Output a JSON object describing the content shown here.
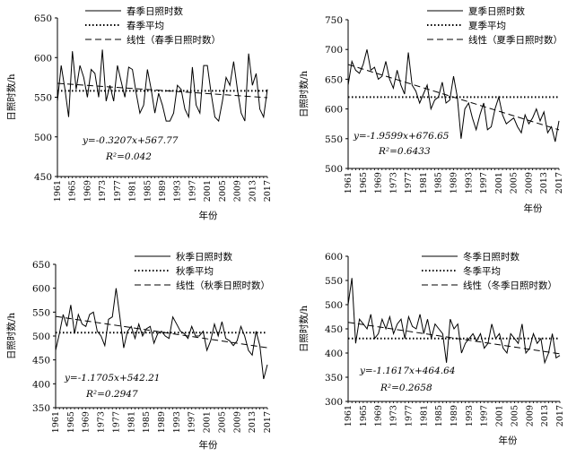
{
  "charts": [
    {
      "type": "line",
      "ylabel": "日照时数/h",
      "xlabel": "年份",
      "ylim": [
        450,
        650
      ],
      "yticks": [
        450,
        500,
        550,
        600,
        650
      ],
      "xticks": [
        "1961",
        "1965",
        "1969",
        "1973",
        "1977",
        "1981",
        "1985",
        "1989",
        "1993",
        "1997",
        "2001",
        "2005",
        "2009",
        "2013",
        "2017"
      ],
      "legend": [
        "春季日照时数",
        "春季平均",
        "线性（春季日照时数）"
      ],
      "legend_position": "top",
      "equation": "y=-0.3207x+567.77",
      "r2": "R²=0.042",
      "mean": 558,
      "trend": {
        "slope": -0.3207,
        "intercept": 567.77
      },
      "years": [
        1961,
        2017
      ],
      "values": [
        545,
        590,
        560,
        525,
        608,
        560,
        590,
        575,
        550,
        585,
        580,
        550,
        610,
        545,
        565,
        545,
        590,
        570,
        550,
        588,
        585,
        555,
        530,
        540,
        585,
        560,
        530,
        555,
        540,
        520,
        520,
        530,
        565,
        560,
        535,
        525,
        588,
        540,
        530,
        590,
        590,
        555,
        525,
        520,
        545,
        575,
        565,
        595,
        560,
        530,
        520,
        605,
        565,
        580,
        535,
        525,
        560
      ]
    },
    {
      "type": "line",
      "ylabel": "日照时数/h",
      "xlabel": "年份",
      "ylim": [
        500,
        750
      ],
      "yticks": [
        500,
        550,
        600,
        650,
        700,
        750
      ],
      "xticks": [
        "1961",
        "1965",
        "1969",
        "1973",
        "1977",
        "1981",
        "1985",
        "1989",
        "1993",
        "1997",
        "2001",
        "2005",
        "2009",
        "2013",
        "2017"
      ],
      "legend": [
        "夏季日照时数",
        "夏季平均",
        "线性（夏季日照时数）"
      ],
      "legend_position": "top",
      "equation": "y=-1.9599x+676.65",
      "r2": "R²=0.6433",
      "mean": 620,
      "trend": {
        "slope": -1.9599,
        "intercept": 676.65
      },
      "years": [
        1961,
        2017
      ],
      "values": [
        640,
        680,
        665,
        660,
        675,
        700,
        665,
        670,
        650,
        655,
        680,
        650,
        635,
        665,
        640,
        625,
        695,
        640,
        630,
        610,
        625,
        640,
        600,
        615,
        620,
        645,
        610,
        615,
        655,
        620,
        550,
        600,
        610,
        585,
        565,
        590,
        610,
        565,
        570,
        600,
        620,
        590,
        575,
        580,
        585,
        570,
        560,
        590,
        575,
        585,
        600,
        580,
        595,
        560,
        570,
        545,
        580
      ]
    },
    {
      "type": "line",
      "ylabel": "日照时数/h",
      "xlabel": "年份",
      "ylim": [
        350,
        650
      ],
      "yticks": [
        350,
        400,
        450,
        500,
        550,
        600,
        650
      ],
      "xticks": [
        "1961",
        "1965",
        "1969",
        "1973",
        "1977",
        "1981",
        "1985",
        "1989",
        "1993",
        "1997",
        "2001",
        "2005",
        "2009",
        "2013",
        "2017"
      ],
      "legend": [
        "秋季日照时数",
        "秋季平均",
        "线性（秋季日照时数）"
      ],
      "legend_position": "top",
      "equation": "y=-1.1705x+542.21",
      "r2": "R²=0.2947",
      "mean": 507,
      "trend": {
        "slope": -1.1705,
        "intercept": 542.21
      },
      "years": [
        1961,
        2017
      ],
      "values": [
        470,
        505,
        545,
        520,
        565,
        505,
        545,
        525,
        520,
        545,
        550,
        510,
        500,
        480,
        535,
        540,
        600,
        540,
        475,
        510,
        520,
        495,
        525,
        500,
        515,
        520,
        485,
        505,
        510,
        500,
        495,
        540,
        525,
        510,
        505,
        495,
        520,
        500,
        500,
        510,
        470,
        490,
        525,
        500,
        530,
        495,
        490,
        480,
        490,
        520,
        500,
        470,
        460,
        510,
        480,
        410,
        440
      ]
    },
    {
      "type": "line",
      "ylabel": "日照时数/h",
      "xlabel": "年份",
      "ylim": [
        300,
        600
      ],
      "yticks": [
        300,
        350,
        400,
        450,
        500,
        550,
        600
      ],
      "xticks": [
        "1961",
        "1965",
        "1969",
        "1973",
        "1977",
        "1981",
        "1985",
        "1989",
        "1993",
        "1997",
        "2001",
        "2005",
        "2009",
        "2013",
        "2017"
      ],
      "legend": [
        "冬季日照时数",
        "冬季平均",
        "线性（冬季日照时数）"
      ],
      "legend_position": "top",
      "equation": "y=-1.1617x+464.64",
      "r2": "R²=0.2658",
      "mean": 430,
      "trend": {
        "slope": -1.1617,
        "intercept": 464.64
      },
      "years": [
        1961,
        2017
      ],
      "values": [
        500,
        555,
        420,
        470,
        460,
        450,
        480,
        430,
        440,
        470,
        450,
        475,
        440,
        460,
        470,
        430,
        475,
        455,
        450,
        480,
        440,
        470,
        430,
        460,
        450,
        440,
        380,
        470,
        450,
        460,
        400,
        420,
        430,
        440,
        425,
        440,
        410,
        420,
        460,
        430,
        440,
        410,
        400,
        440,
        430,
        420,
        460,
        400,
        410,
        440,
        420,
        430,
        380,
        400,
        440,
        390,
        395
      ]
    }
  ]
}
